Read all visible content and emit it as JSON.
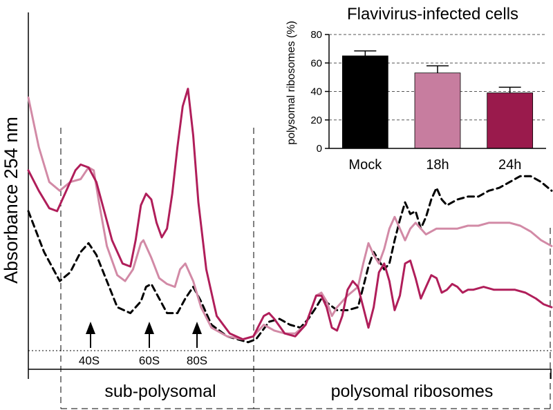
{
  "main_chart": {
    "ylabel": "Absorbance 254 nm",
    "regions": {
      "sub_polysomal": "sub-polysomal",
      "polysomal": "polysomal ribosomes"
    },
    "peaks": [
      {
        "label": "40S"
      },
      {
        "label": "60S"
      },
      {
        "label": "80S"
      }
    ]
  },
  "inset": {
    "title": "Flavivirus-infected cells",
    "ylabel": "polysomal ribosomes (%)"
  },
  "chart_data": [
    {
      "type": "line",
      "ylabel": "Absorbance 254 nm",
      "x_units": "gradient fraction (relative, 0–100)",
      "y_units": "absorbance (relative, 0–100)",
      "annotations": [
        "40S",
        "60S",
        "80S",
        "sub-polysomal",
        "polysomal ribosomes"
      ],
      "series": [
        {
          "style": "dashed",
          "color": "#000000",
          "points": [
            [
              0,
              46
            ],
            [
              3,
              32
            ],
            [
              6,
              22
            ],
            [
              8,
              25
            ],
            [
              10,
              32
            ],
            [
              11.5,
              35
            ],
            [
              13,
              31
            ],
            [
              15,
              22
            ],
            [
              17,
              13
            ],
            [
              19.5,
              11
            ],
            [
              21.5,
              15
            ],
            [
              22.5,
              20
            ],
            [
              23.5,
              21
            ],
            [
              25,
              16
            ],
            [
              26.5,
              11
            ],
            [
              28.5,
              11
            ],
            [
              30,
              16
            ],
            [
              31.5,
              20
            ],
            [
              33,
              15
            ],
            [
              35,
              7
            ],
            [
              38,
              3
            ],
            [
              42,
              1
            ],
            [
              43.5,
              2
            ],
            [
              46,
              8
            ],
            [
              48,
              9
            ],
            [
              50,
              7
            ],
            [
              52,
              6
            ],
            [
              53.5,
              9
            ],
            [
              55,
              13
            ],
            [
              56,
              16
            ],
            [
              57.5,
              14
            ],
            [
              59,
              12
            ],
            [
              61,
              12
            ],
            [
              63,
              13
            ],
            [
              64,
              20
            ],
            [
              65,
              27
            ],
            [
              66,
              32
            ],
            [
              68,
              26
            ],
            [
              69,
              28
            ],
            [
              70,
              36
            ],
            [
              71,
              43
            ],
            [
              72,
              49
            ],
            [
              73,
              45
            ],
            [
              74,
              46
            ],
            [
              75,
              40
            ],
            [
              76,
              44
            ],
            [
              77,
              50
            ],
            [
              78,
              54
            ],
            [
              79,
              50
            ],
            [
              80,
              48
            ],
            [
              82,
              50
            ],
            [
              84,
              51
            ],
            [
              86,
              51
            ],
            [
              88,
              53
            ],
            [
              90,
              54
            ],
            [
              92,
              56
            ],
            [
              94,
              58
            ],
            [
              96,
              58
            ],
            [
              98,
              56
            ],
            [
              100,
              53
            ]
          ]
        },
        {
          "style": "solid",
          "color": "#d28aa6",
          "points": [
            [
              0,
              85
            ],
            [
              2,
              68
            ],
            [
              4,
              56
            ],
            [
              6,
              53
            ],
            [
              8,
              56
            ],
            [
              10,
              57
            ],
            [
              11.5,
              61
            ],
            [
              12.5,
              60
            ],
            [
              13.5,
              49
            ],
            [
              15,
              34
            ],
            [
              17,
              24
            ],
            [
              18.5,
              22
            ],
            [
              20,
              26
            ],
            [
              21.5,
              35
            ],
            [
              22,
              36
            ],
            [
              23.5,
              30
            ],
            [
              25,
              23
            ],
            [
              26.5,
              21
            ],
            [
              28,
              20
            ],
            [
              29,
              26
            ],
            [
              30,
              28
            ],
            [
              31.5,
              22
            ],
            [
              33,
              13
            ],
            [
              35,
              6
            ],
            [
              38,
              3
            ],
            [
              41,
              2
            ],
            [
              43,
              3
            ],
            [
              45,
              7
            ],
            [
              47,
              5
            ],
            [
              49,
              4
            ],
            [
              51,
              4
            ],
            [
              53,
              7
            ],
            [
              55,
              17
            ],
            [
              56,
              18
            ],
            [
              57,
              15
            ],
            [
              58,
              10
            ],
            [
              59,
              13
            ],
            [
              61,
              17
            ],
            [
              63,
              20
            ],
            [
              64,
              28
            ],
            [
              65,
              35
            ],
            [
              66,
              31
            ],
            [
              67,
              28
            ],
            [
              68,
              33
            ],
            [
              69,
              40
            ],
            [
              70,
              44
            ],
            [
              71,
              40
            ],
            [
              72,
              36
            ],
            [
              73,
              40
            ],
            [
              74,
              42
            ],
            [
              75,
              40
            ],
            [
              76,
              38
            ],
            [
              78,
              40
            ],
            [
              80,
              40
            ],
            [
              82,
              40
            ],
            [
              84,
              41
            ],
            [
              86,
              41
            ],
            [
              88,
              42
            ],
            [
              90,
              42
            ],
            [
              92,
              42
            ],
            [
              94,
              41
            ],
            [
              96,
              39
            ],
            [
              98,
              36
            ],
            [
              100,
              34
            ]
          ]
        },
        {
          "style": "solid",
          "color": "#b01e5a",
          "points": [
            [
              0,
              60
            ],
            [
              2,
              53
            ],
            [
              4,
              47
            ],
            [
              5.5,
              46
            ],
            [
              7,
              52
            ],
            [
              9,
              60
            ],
            [
              10,
              62
            ],
            [
              11.5,
              61
            ],
            [
              13,
              56
            ],
            [
              14.5,
              46
            ],
            [
              16,
              36
            ],
            [
              18,
              28
            ],
            [
              19.5,
              27
            ],
            [
              20.5,
              36
            ],
            [
              21.5,
              48
            ],
            [
              22.5,
              52
            ],
            [
              23.5,
              50
            ],
            [
              24.5,
              42
            ],
            [
              25.5,
              37
            ],
            [
              26.5,
              40
            ],
            [
              27.5,
              52
            ],
            [
              28.5,
              68
            ],
            [
              29.5,
              82
            ],
            [
              30.5,
              88
            ],
            [
              31.5,
              72
            ],
            [
              32.5,
              49
            ],
            [
              34,
              26
            ],
            [
              36,
              10
            ],
            [
              38.5,
              4
            ],
            [
              41,
              2
            ],
            [
              43,
              3
            ],
            [
              45,
              10
            ],
            [
              46,
              11
            ],
            [
              47,
              9
            ],
            [
              49,
              4
            ],
            [
              51,
              3
            ],
            [
              53,
              7
            ],
            [
              55,
              17
            ],
            [
              56,
              17
            ],
            [
              57,
              13
            ],
            [
              58,
              6
            ],
            [
              59,
              5
            ],
            [
              60,
              10
            ],
            [
              61,
              19
            ],
            [
              62,
              22
            ],
            [
              63,
              20
            ],
            [
              64,
              13
            ],
            [
              65,
              6
            ],
            [
              66,
              13
            ],
            [
              67,
              25
            ],
            [
              68,
              28
            ],
            [
              69,
              22
            ],
            [
              70,
              12
            ],
            [
              71,
              17
            ],
            [
              72,
              28
            ],
            [
              73,
              29
            ],
            [
              74,
              23
            ],
            [
              75,
              16
            ],
            [
              76,
              20
            ],
            [
              77,
              24
            ],
            [
              78,
              23
            ],
            [
              79,
              18
            ],
            [
              80,
              19
            ],
            [
              81,
              21
            ],
            [
              82,
              20
            ],
            [
              83,
              18
            ],
            [
              84,
              19
            ],
            [
              85,
              19
            ],
            [
              87,
              20
            ],
            [
              89,
              19
            ],
            [
              91,
              19
            ],
            [
              93,
              19
            ],
            [
              95,
              18
            ],
            [
              97,
              16
            ],
            [
              98.5,
              14
            ],
            [
              100,
              13
            ]
          ]
        }
      ]
    },
    {
      "type": "bar",
      "title": "Flavivirus-infected cells",
      "ylabel": "polysomal ribosomes (%)",
      "categories": [
        "Mock",
        "18h",
        "24h"
      ],
      "values": [
        65,
        53,
        39
      ],
      "errors": [
        3.5,
        5,
        4
      ],
      "colors": [
        "#000000",
        "#c77d9f",
        "#9a1a4c"
      ],
      "ylim": [
        0,
        80
      ],
      "yticks": [
        0,
        20,
        40,
        60,
        80
      ],
      "grid": "dashed horizontal"
    }
  ]
}
